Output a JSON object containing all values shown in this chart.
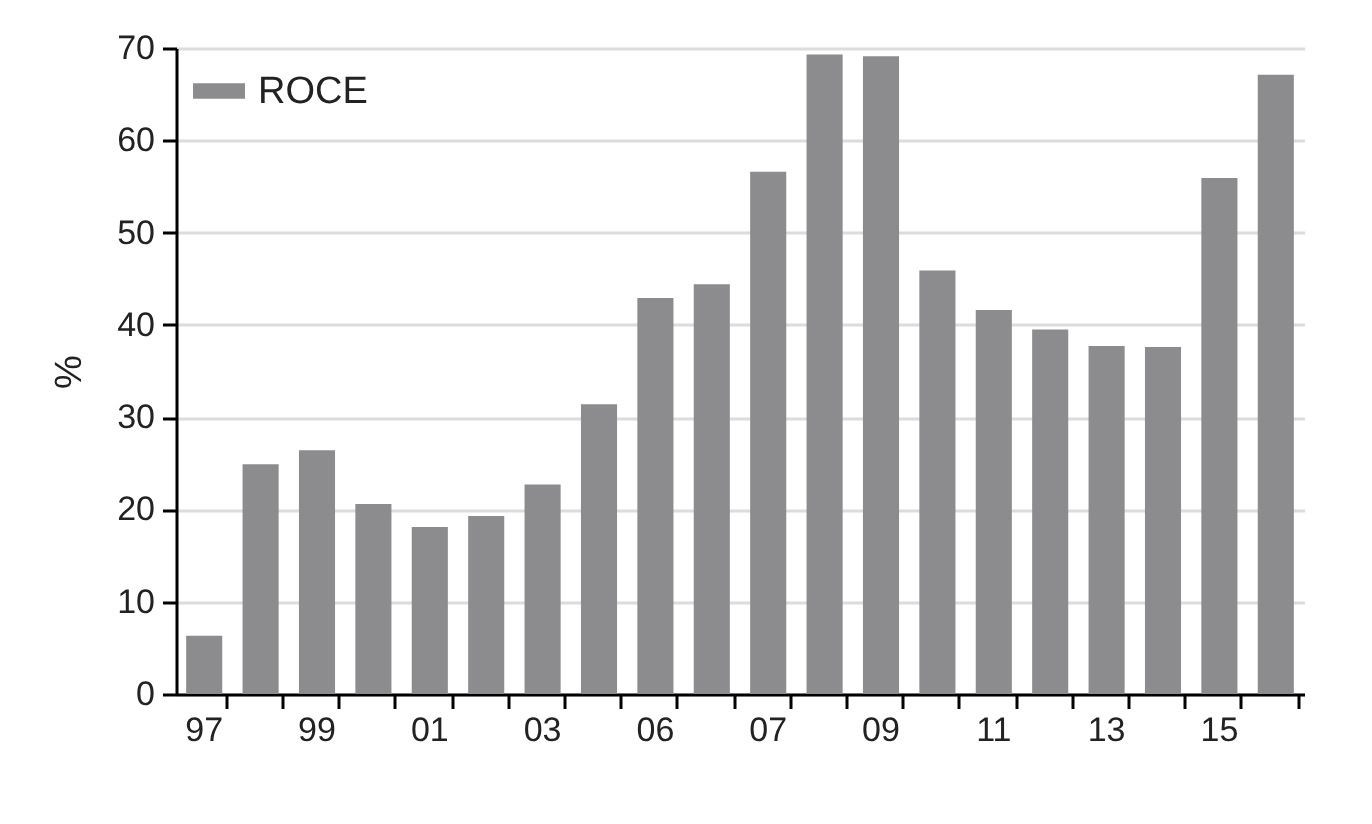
{
  "chart_data": {
    "type": "bar",
    "ylabel": "%",
    "categories": [
      "97",
      null,
      "99",
      null,
      "01",
      null,
      "03",
      null,
      "06",
      null,
      "07",
      null,
      "09",
      null,
      "11",
      null,
      "13",
      null,
      "15",
      null
    ],
    "series": [
      {
        "name": "ROCE",
        "color": "#8c8c8e",
        "values": [
          6.3,
          24.9,
          26.4,
          20.6,
          18.1,
          19.3,
          22.7,
          31.4,
          42.9,
          44.4,
          56.6,
          69.3,
          69.1,
          45.9,
          41.6,
          39.5,
          37.7,
          37.6,
          55.9,
          67.1
        ]
      }
    ],
    "ylim": [
      0,
      70
    ],
    "yticks": [
      0,
      10,
      20,
      30,
      40,
      50,
      60,
      70
    ],
    "grid": "y",
    "legend": "top left"
  }
}
